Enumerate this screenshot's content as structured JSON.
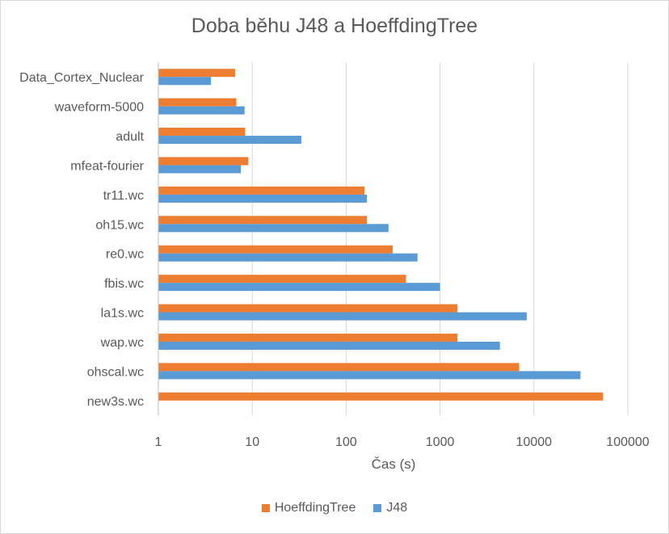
{
  "chart_data": {
    "type": "bar",
    "orientation": "horizontal",
    "title": "Doba běhu J48 a HoeffdingTree",
    "xlabel": "Čas (s)",
    "x_scale": "log",
    "xlim": [
      1,
      100000
    ],
    "x_ticks": [
      "1",
      "10",
      "100",
      "1000",
      "10000",
      "100000"
    ],
    "grid": true,
    "legend_position": "bottom",
    "categories": [
      "Data_Cortex_Nuclear",
      "waveform-5000",
      "adult",
      "mfeat-fourier",
      "tr11.wc",
      "oh15.wc",
      "re0.wc",
      "fbis.wc",
      "la1s.wc",
      "wap.wc",
      "ohscal.wc",
      "new3s.wc"
    ],
    "series": [
      {
        "name": "HoeffdingTree",
        "color": "#ED7D31",
        "values": [
          6.5,
          6.7,
          8.3,
          9.0,
          155,
          165,
          310,
          430,
          1520,
          1520,
          6900,
          54000
        ]
      },
      {
        "name": "J48",
        "color": "#5B9BD5",
        "values": [
          3.6,
          8.2,
          33,
          7.5,
          165,
          280,
          570,
          990,
          8300,
          4300,
          31000,
          null
        ]
      }
    ]
  }
}
